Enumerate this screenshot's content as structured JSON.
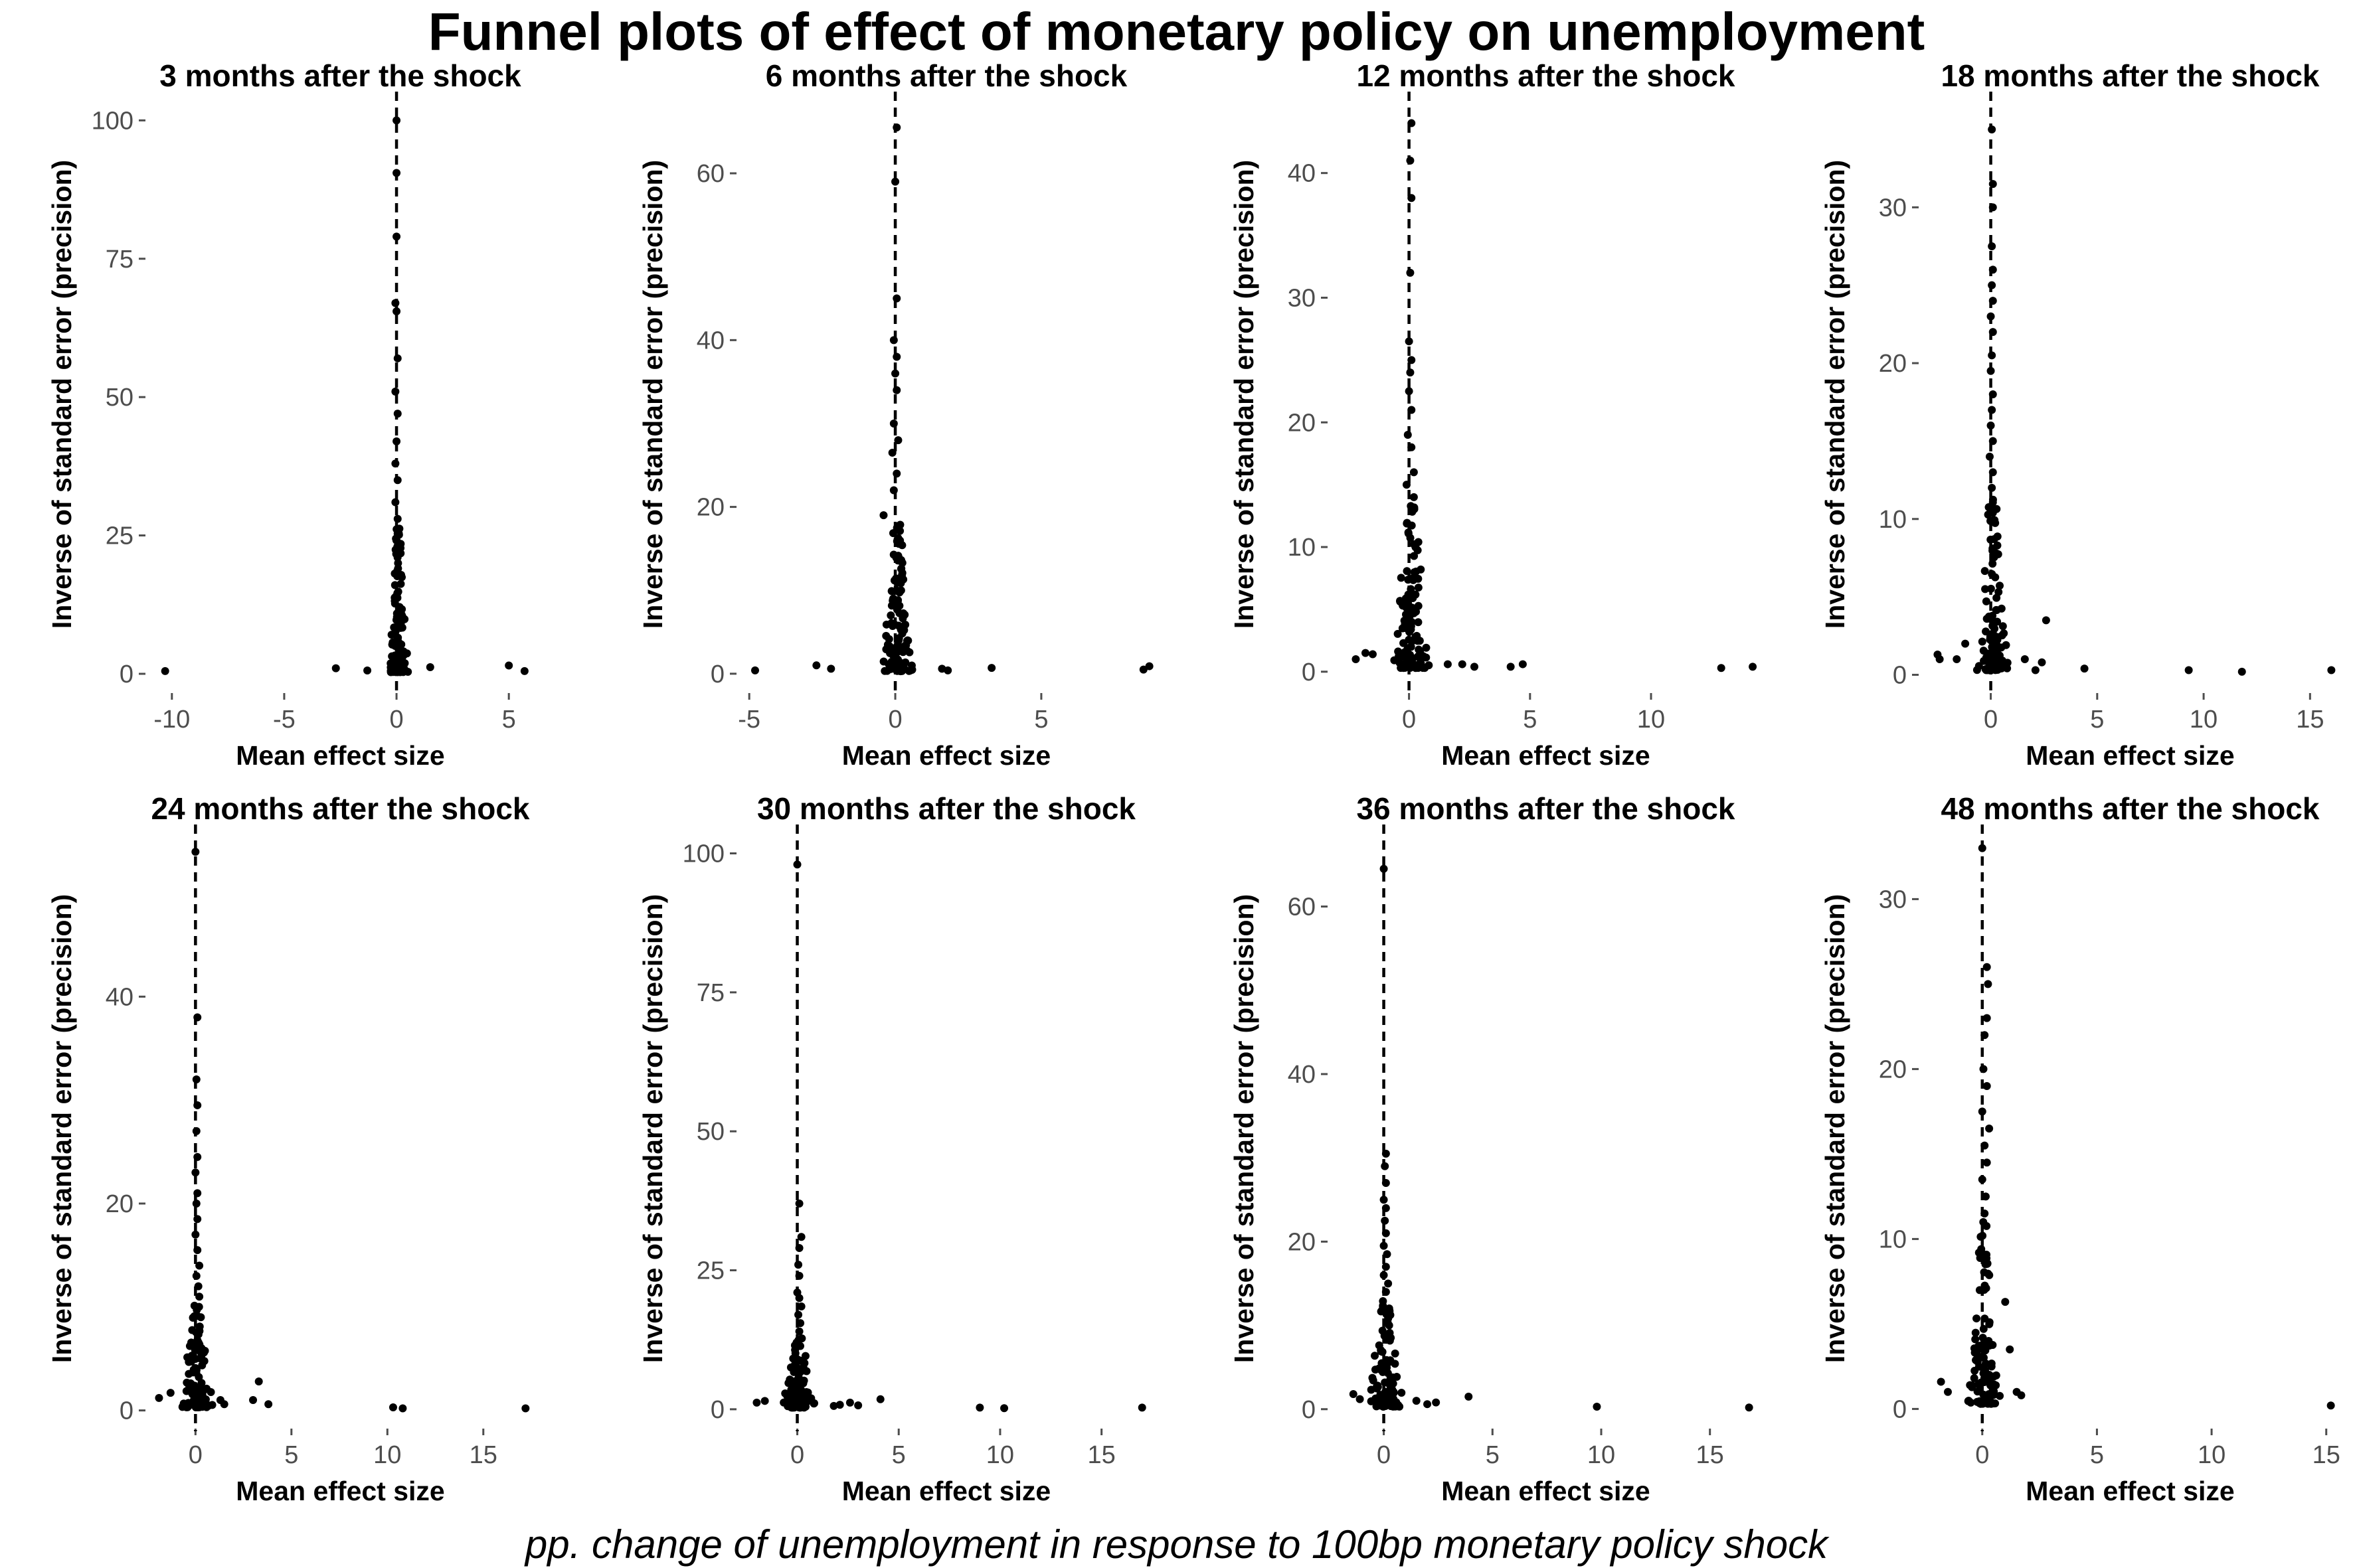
{
  "title": "Funnel plots of effect of monetary policy on unemployment",
  "caption": "pp. change of unemployment in response to 100bp monetary policy shock",
  "colors": {
    "points": "#000000",
    "ticks": "#4d4d4d",
    "refline": "#000000"
  },
  "chart_data": [
    {
      "type": "scatter",
      "title": "3 months after the shock",
      "xlabel": "Mean effect size",
      "ylabel": "Inverse of standard error (precision)",
      "xlim": [
        -11,
        6
      ],
      "ylim": [
        -3,
        104
      ],
      "xticks": [
        -10,
        -5,
        0,
        5
      ],
      "yticks": [
        0,
        25,
        50,
        75,
        100
      ],
      "reference_x": 0,
      "outliers": [
        [
          -10.3,
          0.5
        ],
        [
          -2.7,
          1.0
        ],
        [
          -1.3,
          0.6
        ],
        [
          1.5,
          1.2
        ],
        [
          5.0,
          1.5
        ],
        [
          5.7,
          0.5
        ]
      ],
      "spine": [
        [
          0.0,
          100.0
        ],
        [
          0.0,
          90.5
        ],
        [
          0.0,
          79.0
        ],
        [
          -0.05,
          67.0
        ],
        [
          0.0,
          65.5
        ],
        [
          0.05,
          57.0
        ],
        [
          -0.05,
          51.0
        ],
        [
          0.05,
          47.0
        ],
        [
          0.0,
          42.0
        ],
        [
          -0.05,
          38.0
        ],
        [
          0.05,
          35.0
        ],
        [
          -0.05,
          31.0
        ],
        [
          0.05,
          28.0
        ]
      ],
      "core": {
        "x_spread": 0.45,
        "y_max": 26,
        "n": 120
      },
      "grid": false,
      "legend": "none"
    },
    {
      "type": "scatter",
      "title": "6 months after the shock",
      "xlabel": "Mean effect size",
      "ylabel": "Inverse of standard error (precision)",
      "xlim": [
        -5.3,
        8.8
      ],
      "ylim": [
        -2,
        69
      ],
      "xticks": [
        -5,
        0,
        5
      ],
      "yticks": [
        0,
        20,
        40,
        60
      ],
      "reference_x": 0,
      "outliers": [
        [
          -4.8,
          0.4
        ],
        [
          -2.7,
          1.0
        ],
        [
          -2.2,
          0.6
        ],
        [
          1.6,
          0.6
        ],
        [
          1.8,
          0.4
        ],
        [
          3.3,
          0.7
        ],
        [
          8.5,
          0.5
        ],
        [
          8.7,
          0.9
        ]
      ],
      "spine": [
        [
          0.05,
          65.5
        ],
        [
          0.0,
          59.0
        ],
        [
          0.05,
          45.0
        ],
        [
          -0.05,
          40.0
        ],
        [
          0.05,
          38.0
        ],
        [
          0.0,
          36.0
        ],
        [
          0.05,
          34.0
        ],
        [
          -0.05,
          30.0
        ],
        [
          0.1,
          28.0
        ],
        [
          -0.1,
          26.5
        ],
        [
          0.05,
          24.0
        ],
        [
          -0.05,
          22.0
        ],
        [
          -0.4,
          19.0
        ]
      ],
      "core": {
        "x_spread": 0.6,
        "y_max": 18,
        "n": 110
      },
      "grid": false,
      "legend": "none"
    },
    {
      "type": "scatter",
      "title": "12 months after the shock",
      "xlabel": "Mean effect size",
      "ylabel": "Inverse of standard error (precision)",
      "xlim": [
        -3.2,
        14.5
      ],
      "ylim": [
        -1.5,
        46
      ],
      "xticks": [
        0,
        5,
        10
      ],
      "yticks": [
        0,
        10,
        20,
        30,
        40
      ],
      "reference_x": 0,
      "outliers": [
        [
          -2.2,
          1.0
        ],
        [
          -1.8,
          1.5
        ],
        [
          -1.5,
          1.4
        ],
        [
          1.6,
          0.6
        ],
        [
          2.2,
          0.6
        ],
        [
          2.7,
          0.4
        ],
        [
          4.2,
          0.4
        ],
        [
          4.7,
          0.6
        ],
        [
          12.9,
          0.3
        ],
        [
          14.2,
          0.4
        ]
      ],
      "spine": [
        [
          0.1,
          44.0
        ],
        [
          0.05,
          41.0
        ],
        [
          0.1,
          38.0
        ],
        [
          0.05,
          32.0
        ],
        [
          0.0,
          26.5
        ],
        [
          0.1,
          25.0
        ],
        [
          0.05,
          24.0
        ],
        [
          0.0,
          22.5
        ],
        [
          0.1,
          21.0
        ],
        [
          -0.05,
          19.0
        ],
        [
          0.1,
          18.0
        ],
        [
          0.2,
          16.0
        ],
        [
          -0.1,
          15.0
        ],
        [
          0.2,
          14.0
        ]
      ],
      "core": {
        "x_spread": 0.8,
        "y_max": 13,
        "n": 110
      },
      "grid": false,
      "legend": "none"
    },
    {
      "type": "scatter",
      "title": "18 months after the shock",
      "xlabel": "Mean effect size",
      "ylabel": "Inverse of standard error (precision)",
      "xlim": [
        -3.2,
        16.3
      ],
      "ylim": [
        -1,
        37
      ],
      "xticks": [
        0,
        5,
        10,
        15
      ],
      "yticks": [
        0,
        10,
        20,
        30
      ],
      "reference_x": 0,
      "outliers": [
        [
          -2.5,
          1.3
        ],
        [
          -2.4,
          1.0
        ],
        [
          -1.6,
          1.0
        ],
        [
          -1.2,
          2.0
        ],
        [
          1.6,
          1.0
        ],
        [
          2.1,
          0.3
        ],
        [
          2.4,
          0.8
        ],
        [
          2.6,
          3.5
        ],
        [
          4.4,
          0.4
        ],
        [
          9.3,
          0.3
        ],
        [
          11.8,
          0.2
        ],
        [
          16.0,
          0.3
        ]
      ],
      "spine": [
        [
          0.05,
          35.0
        ],
        [
          0.1,
          31.5
        ],
        [
          0.1,
          30.0
        ],
        [
          0.05,
          27.5
        ],
        [
          0.1,
          26.0
        ],
        [
          0.05,
          25.0
        ],
        [
          0.1,
          24.0
        ],
        [
          0.0,
          23.0
        ],
        [
          0.1,
          22.0
        ],
        [
          0.05,
          20.5
        ],
        [
          0.0,
          19.5
        ],
        [
          0.1,
          18.0
        ],
        [
          0.05,
          17.0
        ],
        [
          0.0,
          16.0
        ],
        [
          0.1,
          15.0
        ],
        [
          -0.05,
          14.0
        ],
        [
          0.1,
          13.0
        ],
        [
          0.05,
          12.0
        ]
      ],
      "core": {
        "x_spread": 0.8,
        "y_max": 11,
        "n": 110
      },
      "grid": false,
      "legend": "none"
    },
    {
      "type": "scatter",
      "title": "24 months after the shock",
      "xlabel": "Mean effect size",
      "ylabel": "Inverse of standard error (precision)",
      "xlim": [
        -2.4,
        17.5
      ],
      "ylim": [
        -1.5,
        56
      ],
      "xticks": [
        0,
        5,
        10,
        15
      ],
      "yticks": [
        0,
        20,
        40
      ],
      "reference_x": 0,
      "outliers": [
        [
          -1.9,
          1.2
        ],
        [
          -1.3,
          1.7
        ],
        [
          1.3,
          1.0
        ],
        [
          1.5,
          0.6
        ],
        [
          3.0,
          1.0
        ],
        [
          3.3,
          2.8
        ],
        [
          3.8,
          0.6
        ],
        [
          10.3,
          0.3
        ],
        [
          10.8,
          0.2
        ],
        [
          17.2,
          0.2
        ]
      ],
      "spine": [
        [
          0.0,
          54.0
        ],
        [
          0.1,
          38.0
        ],
        [
          0.05,
          32.0
        ],
        [
          0.1,
          29.5
        ],
        [
          0.05,
          27.0
        ],
        [
          0.1,
          24.5
        ],
        [
          0.0,
          23.0
        ],
        [
          0.1,
          21.0
        ],
        [
          0.05,
          20.0
        ],
        [
          0.1,
          18.5
        ],
        [
          0.0,
          17.0
        ],
        [
          0.1,
          15.5
        ],
        [
          0.2,
          14.0
        ],
        [
          0.05,
          13.0
        ],
        [
          0.15,
          12.0
        ],
        [
          0.2,
          11.0
        ]
      ],
      "core": {
        "x_spread": 0.9,
        "y_max": 10,
        "n": 110
      },
      "grid": false,
      "legend": "none"
    },
    {
      "type": "scatter",
      "title": "30 months after the shock",
      "xlabel": "Mean effect size",
      "ylabel": "Inverse of standard error (precision)",
      "xlim": [
        -2.8,
        17.5
      ],
      "ylim": [
        -3,
        104
      ],
      "xticks": [
        0,
        5,
        10,
        15
      ],
      "yticks": [
        0,
        25,
        50,
        75,
        100
      ],
      "reference_x": 0,
      "outliers": [
        [
          -2.0,
          1.2
        ],
        [
          -1.6,
          1.5
        ],
        [
          1.8,
          0.6
        ],
        [
          2.1,
          0.8
        ],
        [
          2.6,
          1.2
        ],
        [
          3.0,
          0.7
        ],
        [
          4.1,
          1.8
        ],
        [
          9.0,
          0.3
        ],
        [
          10.2,
          0.2
        ],
        [
          17.0,
          0.3
        ]
      ],
      "spine": [
        [
          0.0,
          98.0
        ],
        [
          0.1,
          37.0
        ],
        [
          0.2,
          31.0
        ],
        [
          0.1,
          29.0
        ],
        [
          0.05,
          26.0
        ],
        [
          0.1,
          24.0
        ],
        [
          0.0,
          21.0
        ],
        [
          0.1,
          20.0
        ],
        [
          0.2,
          18.5
        ],
        [
          0.05,
          17.0
        ],
        [
          0.15,
          15.5
        ],
        [
          0.1,
          14.0
        ]
      ],
      "core": {
        "x_spread": 0.9,
        "y_max": 13,
        "n": 110
      },
      "grid": false,
      "legend": "none"
    },
    {
      "type": "scatter",
      "title": "36 months after the shock",
      "xlabel": "Mean effect size",
      "ylabel": "Inverse of standard error (precision)",
      "xlim": [
        -2.4,
        17.3
      ],
      "ylim": [
        -2,
        69
      ],
      "xticks": [
        0,
        5,
        10,
        15
      ],
      "yticks": [
        0,
        20,
        40,
        60
      ],
      "reference_x": 0,
      "outliers": [
        [
          -1.4,
          1.8
        ],
        [
          -1.1,
          1.2
        ],
        [
          1.5,
          1.0
        ],
        [
          2.0,
          0.6
        ],
        [
          2.4,
          0.8
        ],
        [
          3.9,
          1.5
        ],
        [
          9.8,
          0.3
        ],
        [
          16.8,
          0.2
        ]
      ],
      "spine": [
        [
          0.0,
          64.5
        ],
        [
          0.1,
          30.5
        ],
        [
          0.05,
          29.0
        ],
        [
          0.1,
          27.0
        ],
        [
          0.0,
          25.0
        ],
        [
          0.1,
          24.0
        ],
        [
          0.05,
          22.5
        ],
        [
          0.1,
          21.0
        ],
        [
          0.0,
          19.5
        ],
        [
          0.15,
          18.5
        ],
        [
          0.1,
          17.0
        ],
        [
          0.0,
          16.0
        ],
        [
          0.2,
          15.0
        ],
        [
          0.1,
          14.0
        ]
      ],
      "core": {
        "x_spread": 0.9,
        "y_max": 13,
        "n": 110
      },
      "grid": false,
      "legend": "none"
    },
    {
      "type": "scatter",
      "title": "48 months after the shock",
      "xlabel": "Mean effect size",
      "ylabel": "Inverse of standard error (precision)",
      "xlim": [
        -2.6,
        15.5
      ],
      "ylim": [
        -1,
        34
      ],
      "xticks": [
        0,
        5,
        10,
        15
      ],
      "yticks": [
        0,
        10,
        20,
        30
      ],
      "reference_x": 0,
      "outliers": [
        [
          -1.8,
          1.6
        ],
        [
          -1.5,
          1.0
        ],
        [
          1.0,
          6.3
        ],
        [
          1.2,
          3.5
        ],
        [
          1.5,
          1.0
        ],
        [
          1.7,
          0.8
        ],
        [
          15.2,
          0.2
        ]
      ],
      "spine": [
        [
          0.0,
          33.0
        ],
        [
          0.2,
          26.0
        ],
        [
          0.25,
          25.0
        ],
        [
          0.2,
          23.0
        ],
        [
          0.1,
          22.0
        ],
        [
          0.05,
          20.0
        ],
        [
          0.2,
          19.0
        ],
        [
          0.0,
          17.5
        ],
        [
          0.3,
          16.5
        ],
        [
          0.1,
          15.5
        ],
        [
          0.2,
          14.5
        ],
        [
          0.0,
          13.5
        ],
        [
          0.15,
          12.5
        ],
        [
          0.1,
          11.5
        ]
      ],
      "core": {
        "x_spread": 0.8,
        "y_max": 11,
        "n": 100
      },
      "grid": false,
      "legend": "none"
    }
  ]
}
